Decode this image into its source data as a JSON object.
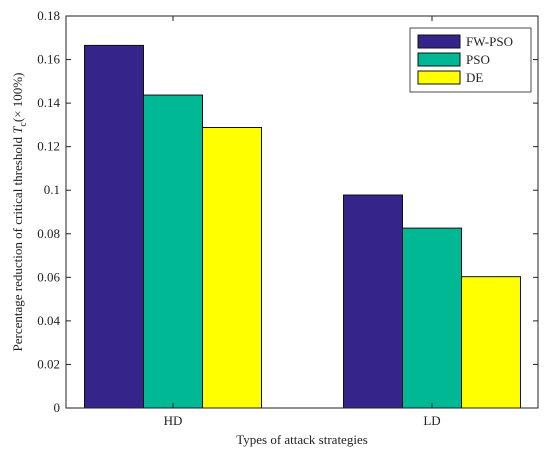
{
  "chart_data": {
    "type": "bar",
    "categories": [
      "HD",
      "LD"
    ],
    "series": [
      {
        "name": "FW-PSO",
        "color": "#35248A",
        "values": [
          0.1665,
          0.0978
        ]
      },
      {
        "name": "PSO",
        "color": "#00B894",
        "values": [
          0.1437,
          0.0826
        ]
      },
      {
        "name": "DE",
        "color": "#FFFF00",
        "values": [
          0.1288,
          0.0603
        ]
      }
    ],
    "title": "",
    "xlabel": "Types of attack strategies",
    "ylabel_main": "Percentage reduction of critical threshold ",
    "ylabel_var": "T",
    "ylabel_sub": "c",
    "ylabel_unit": "(× 100%)",
    "ylim": [
      0,
      0.18
    ],
    "yticks": [
      0,
      0.02,
      0.04,
      0.06,
      0.08,
      0.1,
      0.12,
      0.14,
      0.16,
      0.18
    ],
    "ytick_labels": [
      "0",
      "0.02",
      "0.04",
      "0.06",
      "0.08",
      "0.1",
      "0.12",
      "0.14",
      "0.16",
      "0.18"
    ],
    "grid": false,
    "legend_position": "top-right"
  }
}
